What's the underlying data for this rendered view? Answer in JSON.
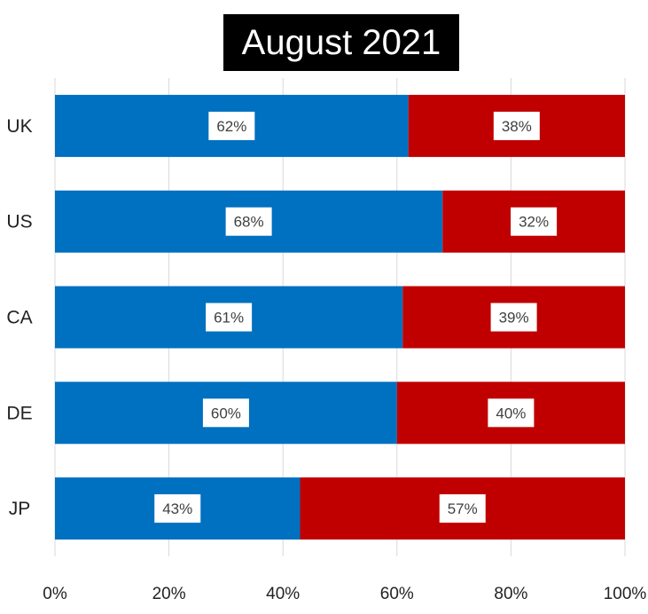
{
  "chart_data": {
    "type": "bar",
    "orientation": "horizontal",
    "stacked": true,
    "title": "August 2021",
    "categories": [
      "UK",
      "US",
      "CA",
      "DE",
      "JP"
    ],
    "series": [
      {
        "color": "#0070C0",
        "values": [
          62,
          68,
          61,
          60,
          43
        ]
      },
      {
        "color": "#C00000",
        "values": [
          38,
          32,
          39,
          40,
          57
        ]
      }
    ],
    "data_labels": [
      [
        "62%",
        "38%"
      ],
      [
        "68%",
        "32%"
      ],
      [
        "61%",
        "39%"
      ],
      [
        "60%",
        "40%"
      ],
      [
        "43%",
        "57%"
      ]
    ],
    "xlim": [
      0,
      100
    ],
    "x_ticks": [
      "0%",
      "20%",
      "40%",
      "60%",
      "80%",
      "100%"
    ],
    "grid": true,
    "legend": "none"
  }
}
